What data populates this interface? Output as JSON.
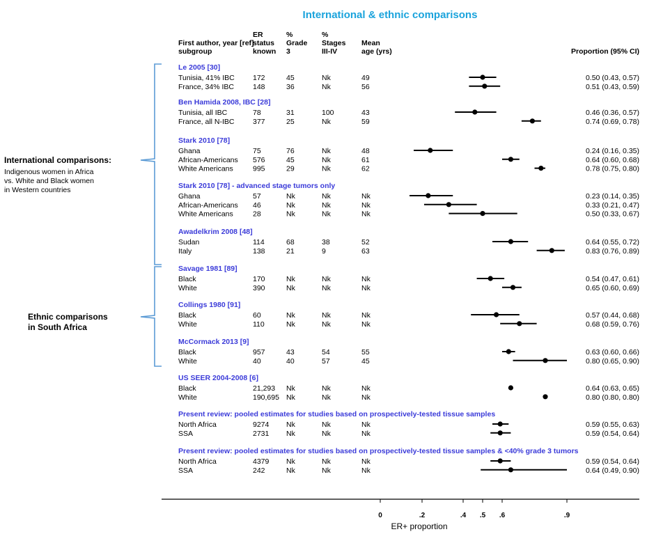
{
  "chart_data": {
    "type": "forest",
    "title": "International & ethnic comparisons",
    "xlabel": "ER+ proportion",
    "x_ticks": [
      "0",
      ".2",
      ".4",
      ".5",
      ".6",
      ".9"
    ],
    "x_tick_values": [
      0,
      0.2,
      0.4,
      0.5,
      0.6,
      0.9
    ],
    "columns": {
      "label": [
        "First author, year [ref]",
        "subgroup"
      ],
      "er": [
        "ER",
        "status",
        "known"
      ],
      "grade": [
        "%",
        "Grade",
        "3"
      ],
      "stage": [
        "%",
        "Stages",
        "III-IV"
      ],
      "age": [
        "Mean",
        "age (yrs)"
      ],
      "ci": "Proportion (95% CI)"
    },
    "side_labels": [
      {
        "bold": "International comparisons:",
        "text": [
          "Indigenous women in Africa",
          "vs. White and Black women",
          "in Western countries"
        ]
      },
      {
        "bold_lines": [
          "Ethnic comparisons",
          "in South Africa"
        ]
      }
    ],
    "groups": [
      {
        "title": "Le 2005 [30]",
        "rows": [
          {
            "label": "Tunisia, 41% IBC",
            "er": "172",
            "grade": "45",
            "stage": "Nk",
            "age": "49",
            "est": 0.5,
            "lo": 0.43,
            "hi": 0.57,
            "ci": "0.50 (0.43, 0.57)"
          },
          {
            "label": "France, 34% IBC",
            "er": "148",
            "grade": "36",
            "stage": "Nk",
            "age": "56",
            "est": 0.51,
            "lo": 0.43,
            "hi": 0.59,
            "ci": "0.51 (0.43, 0.59)"
          }
        ]
      },
      {
        "title": "Ben Hamida 2008, IBC [28]",
        "rows": [
          {
            "label": "Tunisia, all IBC",
            "er": "78",
            "grade": "31",
            "stage": "100",
            "age": "43",
            "est": 0.46,
            "lo": 0.36,
            "hi": 0.57,
            "ci": "0.46 (0.36, 0.57)"
          },
          {
            "label": "France, all N-IBC",
            "er": "377",
            "grade": "25",
            "stage": "Nk",
            "age": "59",
            "est": 0.74,
            "lo": 0.69,
            "hi": 0.78,
            "ci": "0.74 (0.69, 0.78)"
          }
        ]
      },
      {
        "title": "Stark 2010 [78]",
        "rows": [
          {
            "label": "Ghana",
            "er": "75",
            "grade": "76",
            "stage": "Nk",
            "age": "48",
            "est": 0.24,
            "lo": 0.16,
            "hi": 0.35,
            "ci": "0.24 (0.16, 0.35)"
          },
          {
            "label": "African-Americans",
            "er": "576",
            "grade": "45",
            "stage": "Nk",
            "age": "61",
            "est": 0.64,
            "lo": 0.6,
            "hi": 0.68,
            "ci": "0.64 (0.60, 0.68)"
          },
          {
            "label": "White Americans",
            "er": "995",
            "grade": "29",
            "stage": "Nk",
            "age": "62",
            "est": 0.78,
            "lo": 0.75,
            "hi": 0.8,
            "ci": "0.78 (0.75, 0.80)"
          }
        ]
      },
      {
        "title": "Stark 2010 [78] - advanced stage tumors only",
        "rows": [
          {
            "label": "Ghana",
            "er": "57",
            "grade": "Nk",
            "stage": "Nk",
            "age": "Nk",
            "est": 0.23,
            "lo": 0.14,
            "hi": 0.35,
            "ci": "0.23 (0.14, 0.35)"
          },
          {
            "label": "African-Americans",
            "er": "46",
            "grade": "Nk",
            "stage": "Nk",
            "age": "Nk",
            "est": 0.33,
            "lo": 0.21,
            "hi": 0.47,
            "ci": "0.33 (0.21, 0.47)"
          },
          {
            "label": "White Americans",
            "er": "28",
            "grade": "Nk",
            "stage": "Nk",
            "age": "Nk",
            "est": 0.5,
            "lo": 0.33,
            "hi": 0.67,
            "ci": "0.50 (0.33, 0.67)"
          }
        ]
      },
      {
        "title": "Awadelkrim 2008 [48]",
        "rows": [
          {
            "label": "Sudan",
            "er": "114",
            "grade": "68",
            "stage": "38",
            "age": "52",
            "est": 0.64,
            "lo": 0.55,
            "hi": 0.72,
            "ci": "0.64 (0.55, 0.72)"
          },
          {
            "label": "Italy",
            "er": "138",
            "grade": "21",
            "stage": "9",
            "age": "63",
            "est": 0.83,
            "lo": 0.76,
            "hi": 0.89,
            "ci": "0.83 (0.76, 0.89)"
          }
        ]
      },
      {
        "title": "Savage 1981 [89]",
        "rows": [
          {
            "label": "Black",
            "er": "170",
            "grade": "Nk",
            "stage": "Nk",
            "age": "Nk",
            "est": 0.54,
            "lo": 0.47,
            "hi": 0.61,
            "ci": "0.54 (0.47, 0.61)"
          },
          {
            "label": "White",
            "er": "390",
            "grade": "Nk",
            "stage": "Nk",
            "age": "Nk",
            "est": 0.65,
            "lo": 0.6,
            "hi": 0.69,
            "ci": "0.65 (0.60, 0.69)"
          }
        ]
      },
      {
        "title": "Collings 1980 [91]",
        "rows": [
          {
            "label": "Black",
            "er": "60",
            "grade": "Nk",
            "stage": "Nk",
            "age": "Nk",
            "est": 0.57,
            "lo": 0.44,
            "hi": 0.68,
            "ci": "0.57 (0.44, 0.68)"
          },
          {
            "label": "White",
            "er": "110",
            "grade": "Nk",
            "stage": "Nk",
            "age": "Nk",
            "est": 0.68,
            "lo": 0.59,
            "hi": 0.76,
            "ci": "0.68 (0.59, 0.76)"
          }
        ]
      },
      {
        "title": "McCormack 2013 [9]",
        "rows": [
          {
            "label": "Black",
            "er": "957",
            "grade": "43",
            "stage": "54",
            "age": "55",
            "est": 0.63,
            "lo": 0.6,
            "hi": 0.66,
            "ci": "0.63 (0.60, 0.66)"
          },
          {
            "label": "White",
            "er": "40",
            "grade": "40",
            "stage": "57",
            "age": "45",
            "est": 0.8,
            "lo": 0.65,
            "hi": 0.9,
            "ci": "0.80 (0.65, 0.90)"
          }
        ]
      },
      {
        "title": "US SEER 2004-2008 [6]",
        "rows": [
          {
            "label": "Black",
            "er": "21,293",
            "grade": "Nk",
            "stage": "Nk",
            "age": "Nk",
            "est": 0.64,
            "lo": 0.63,
            "hi": 0.65,
            "ci": "0.64 (0.63, 0.65)"
          },
          {
            "label": "White",
            "er": "190,695",
            "grade": "Nk",
            "stage": "Nk",
            "age": "Nk",
            "est": 0.8,
            "lo": 0.8,
            "hi": 0.8,
            "ci": "0.80 (0.80, 0.80)"
          }
        ]
      },
      {
        "title": "Present review: pooled estimates for studies based on prospectively-tested tissue samples",
        "rows": [
          {
            "label": "North Africa",
            "er": "9274",
            "grade": "Nk",
            "stage": "Nk",
            "age": "Nk",
            "est": 0.59,
            "lo": 0.55,
            "hi": 0.63,
            "ci": "0.59 (0.55, 0.63)"
          },
          {
            "label": "SSA",
            "er": "2731",
            "grade": "Nk",
            "stage": "Nk",
            "age": "Nk",
            "est": 0.59,
            "lo": 0.54,
            "hi": 0.64,
            "ci": "0.59 (0.54, 0.64)"
          }
        ]
      },
      {
        "title": "Present review: pooled estimates for studies based on prospectively-tested tissue samples & <40% grade 3 tumors",
        "rows": [
          {
            "label": "North Africa",
            "er": "4379",
            "grade": "Nk",
            "stage": "Nk",
            "age": "Nk",
            "est": 0.59,
            "lo": 0.54,
            "hi": 0.64,
            "ci": "0.59 (0.54, 0.64)"
          },
          {
            "label": "SSA",
            "er": "242",
            "grade": "Nk",
            "stage": "Nk",
            "age": "Nk",
            "est": 0.64,
            "lo": 0.49,
            "hi": 0.9,
            "ci": "0.64 (0.49, 0.90)"
          }
        ]
      }
    ]
  }
}
